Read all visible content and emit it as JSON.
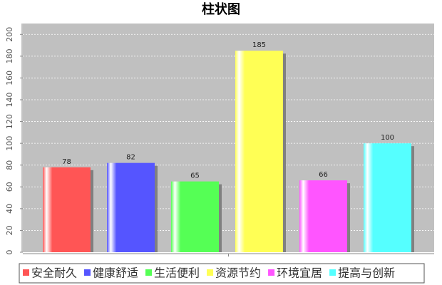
{
  "chart_data": {
    "type": "bar",
    "title": "柱状图",
    "categories": [
      null
    ],
    "series": [
      {
        "name": "安全耐久",
        "color": "#ff5555",
        "values": [
          78
        ]
      },
      {
        "name": "健康舒适",
        "color": "#5555ff",
        "values": [
          82
        ]
      },
      {
        "name": "生活便利",
        "color": "#55ff55",
        "values": [
          65
        ]
      },
      {
        "name": "资源节约",
        "color": "#ffff55",
        "values": [
          185
        ]
      },
      {
        "name": "环境宜居",
        "color": "#ff55ff",
        "values": [
          66
        ]
      },
      {
        "name": "提高与创新",
        "color": "#55ffff",
        "values": [
          100
        ]
      }
    ],
    "ylim": [
      0,
      210
    ],
    "yticks": [
      0,
      20,
      40,
      60,
      80,
      100,
      120,
      140,
      160,
      180,
      200
    ],
    "grid": true
  }
}
